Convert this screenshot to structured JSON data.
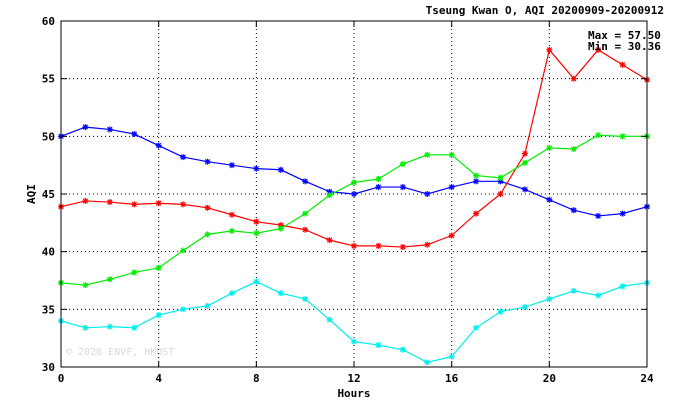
{
  "chart_data": {
    "type": "line",
    "title": "Tseung Kwan O, AQI 20200909-20200912",
    "xlabel": "Hours",
    "ylabel": "AQI",
    "xlim": [
      0,
      24
    ],
    "ylim": [
      30,
      60
    ],
    "xticks": [
      0,
      4,
      8,
      12,
      16,
      20,
      24
    ],
    "yticks": [
      30,
      35,
      40,
      45,
      50,
      55,
      60
    ],
    "grid": true,
    "x": [
      0,
      1,
      2,
      3,
      4,
      5,
      6,
      7,
      8,
      9,
      10,
      11,
      12,
      13,
      14,
      15,
      16,
      17,
      18,
      19,
      20,
      21,
      22,
      23,
      24
    ],
    "series": [
      {
        "color": "#0000ff",
        "values": [
          50.0,
          50.8,
          50.6,
          50.2,
          49.2,
          48.2,
          47.8,
          47.5,
          47.2,
          47.1,
          46.1,
          45.2,
          45.0,
          45.6,
          45.6,
          45.0,
          45.6,
          46.1,
          46.1,
          45.4,
          44.5,
          43.6,
          43.1,
          43.3,
          43.9
        ]
      },
      {
        "color": "#ff0000",
        "values": [
          43.9,
          44.4,
          44.3,
          44.1,
          44.2,
          44.1,
          43.8,
          43.2,
          42.6,
          42.3,
          41.9,
          41.0,
          40.5,
          40.5,
          40.4,
          40.6,
          41.4,
          43.3,
          45.0,
          48.5,
          57.5,
          55.0,
          57.5,
          56.2,
          54.9
        ]
      },
      {
        "color": "#00ee00",
        "values": [
          37.3,
          37.1,
          37.6,
          38.2,
          38.6,
          40.1,
          41.5,
          41.8,
          41.6,
          42.0,
          43.3,
          44.9,
          46.0,
          46.3,
          47.6,
          48.4,
          48.4,
          46.6,
          46.4,
          47.7,
          49.0,
          48.9,
          50.1,
          50.0,
          50.0
        ]
      },
      {
        "color": "#00eeee",
        "values": [
          34.0,
          33.4,
          33.5,
          33.4,
          34.5,
          35.0,
          35.3,
          36.4,
          37.4,
          36.4,
          35.9,
          34.1,
          32.2,
          31.9,
          31.5,
          30.4,
          30.9,
          33.4,
          34.8,
          35.2,
          35.9,
          36.6,
          36.2,
          37.0,
          37.3
        ]
      }
    ],
    "annotations": {
      "max_text": "Max = 57.50",
      "min_text": "Min = 30.36"
    },
    "watermark": "© 2026  ENVF, HKUST"
  }
}
